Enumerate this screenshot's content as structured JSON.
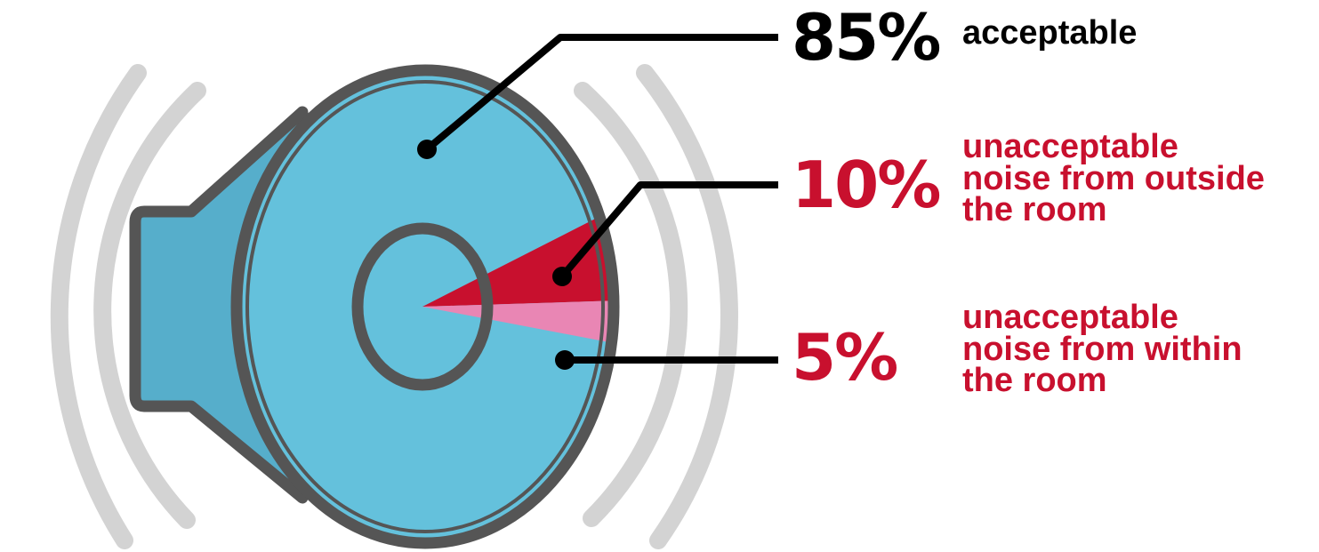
{
  "colors": {
    "speaker_body": "#64C1DC",
    "speaker_horn": "#56AECB",
    "outline": "#555555",
    "waves": "#D3D3D3",
    "leader": "#000000",
    "acceptable_text": "#000000",
    "unacceptable_text": "#C8102E"
  },
  "chart_data": {
    "type": "pie",
    "title": "",
    "slices": [
      {
        "label": "acceptable",
        "percent_label": "85%",
        "value": 85,
        "color": "#64C1DC",
        "description_lines": [
          "acceptable"
        ]
      },
      {
        "label": "unacceptable noise from outside the room",
        "percent_label": "10%",
        "value": 10,
        "color": "#C8102E",
        "description_lines": [
          "unacceptable",
          "noise from outside",
          "the room"
        ]
      },
      {
        "label": "unacceptable noise from within the room",
        "percent_label": "5%",
        "value": 5,
        "color": "#E986B4",
        "description_lines": [
          "unacceptable",
          "noise from within",
          "the room"
        ]
      }
    ]
  }
}
